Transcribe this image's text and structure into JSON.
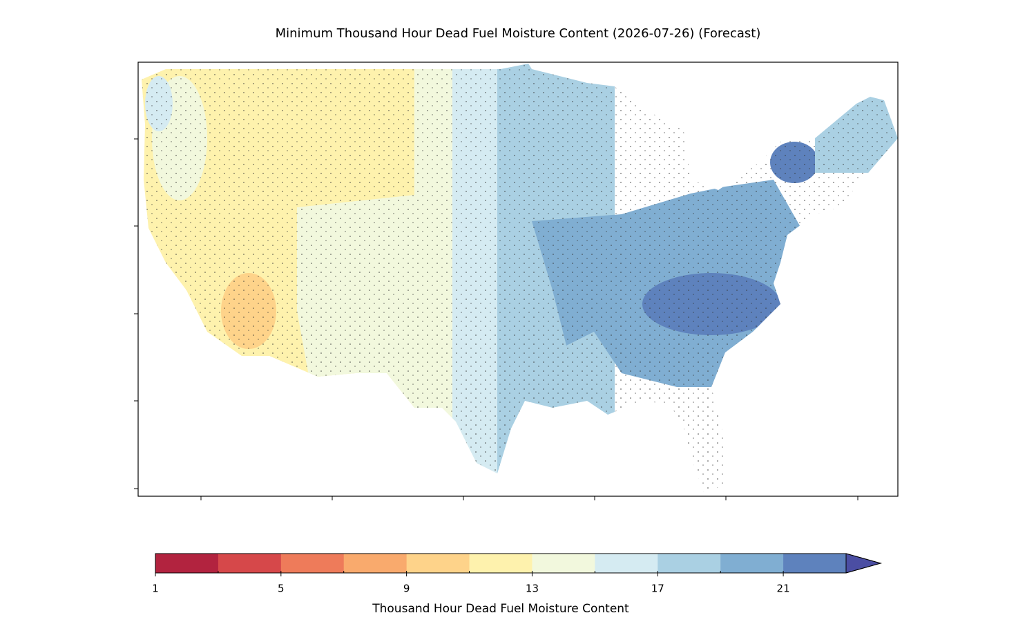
{
  "chart_data": {
    "type": "map",
    "title": "Minimum Thousand Hour Dead Fuel Moisture Content (2026-07-26) (Forecast)",
    "colorbar": {
      "label": "Thousand Hour Dead Fuel Moisture Content",
      "levels": [
        1,
        3,
        5,
        7,
        9,
        11,
        13,
        15,
        17,
        19,
        21,
        23
      ],
      "colors": [
        "#b2233f",
        "#d6484a",
        "#ee7b5a",
        "#f9aa6d",
        "#fed38a",
        "#fef2ad",
        "#f2f8dd",
        "#d5ebf2",
        "#aad0e3",
        "#80aed2",
        "#5e82bd"
      ],
      "extend_color": "#4b4ea3",
      "ticks": [
        1,
        5,
        9,
        13,
        17,
        21
      ]
    }
  }
}
